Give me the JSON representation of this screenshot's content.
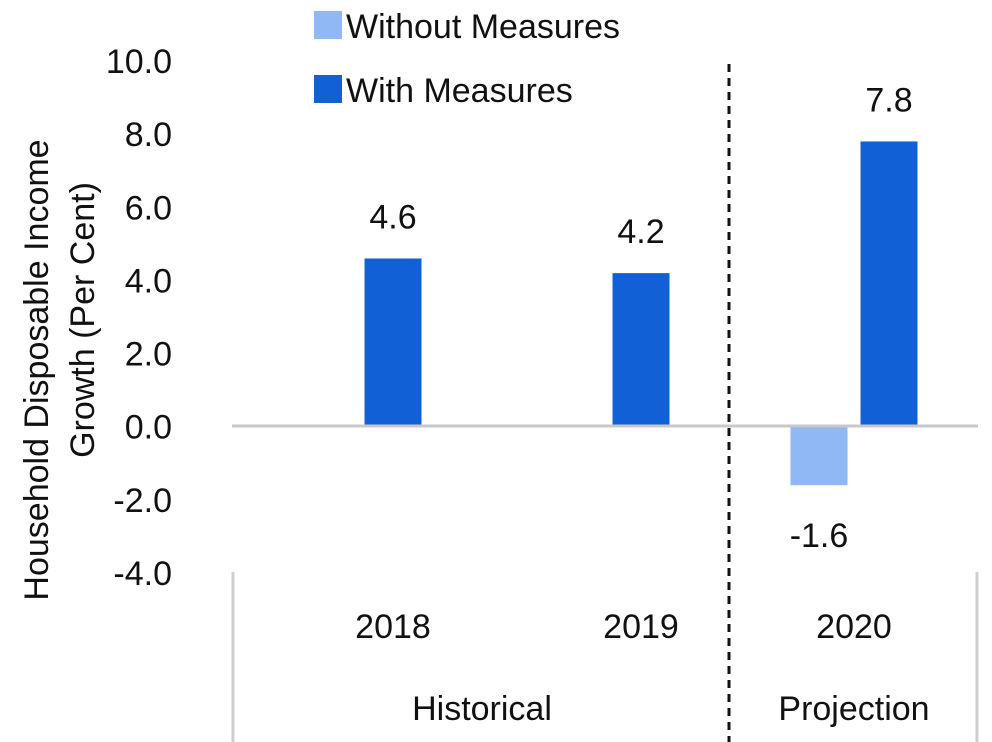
{
  "chart_data": {
    "type": "bar",
    "categories": [
      "2018",
      "2019",
      "2020"
    ],
    "groups": [
      {
        "label": "Historical",
        "categories": [
          "2018",
          "2019"
        ]
      },
      {
        "label": "Projection",
        "categories": [
          "2020"
        ]
      }
    ],
    "series": [
      {
        "name": "Without Measures",
        "color": "#8fb8f5",
        "values": [
          null,
          null,
          -1.6
        ],
        "labels": [
          "",
          "",
          "-1.6"
        ]
      },
      {
        "name": "With Measures",
        "color": "#1160d6",
        "values": [
          4.6,
          4.2,
          7.8
        ],
        "labels": [
          "4.6",
          "4.2",
          "7.8"
        ]
      }
    ],
    "ylabel_line1": "Household Disposable Income",
    "ylabel_line2": "Growth (Per Cent)",
    "ylim": [
      -4,
      10
    ],
    "yticks": [
      10,
      8,
      6,
      4,
      2,
      0,
      -2,
      -4
    ],
    "ytick_labels": [
      "10.0",
      "8.0",
      "6.0",
      "4.0",
      "2.0",
      "0.0",
      "-2.0",
      "-4.0"
    ],
    "legend_position": "top-left",
    "grid": false,
    "divider": "dashed line between 2019 and 2020"
  }
}
